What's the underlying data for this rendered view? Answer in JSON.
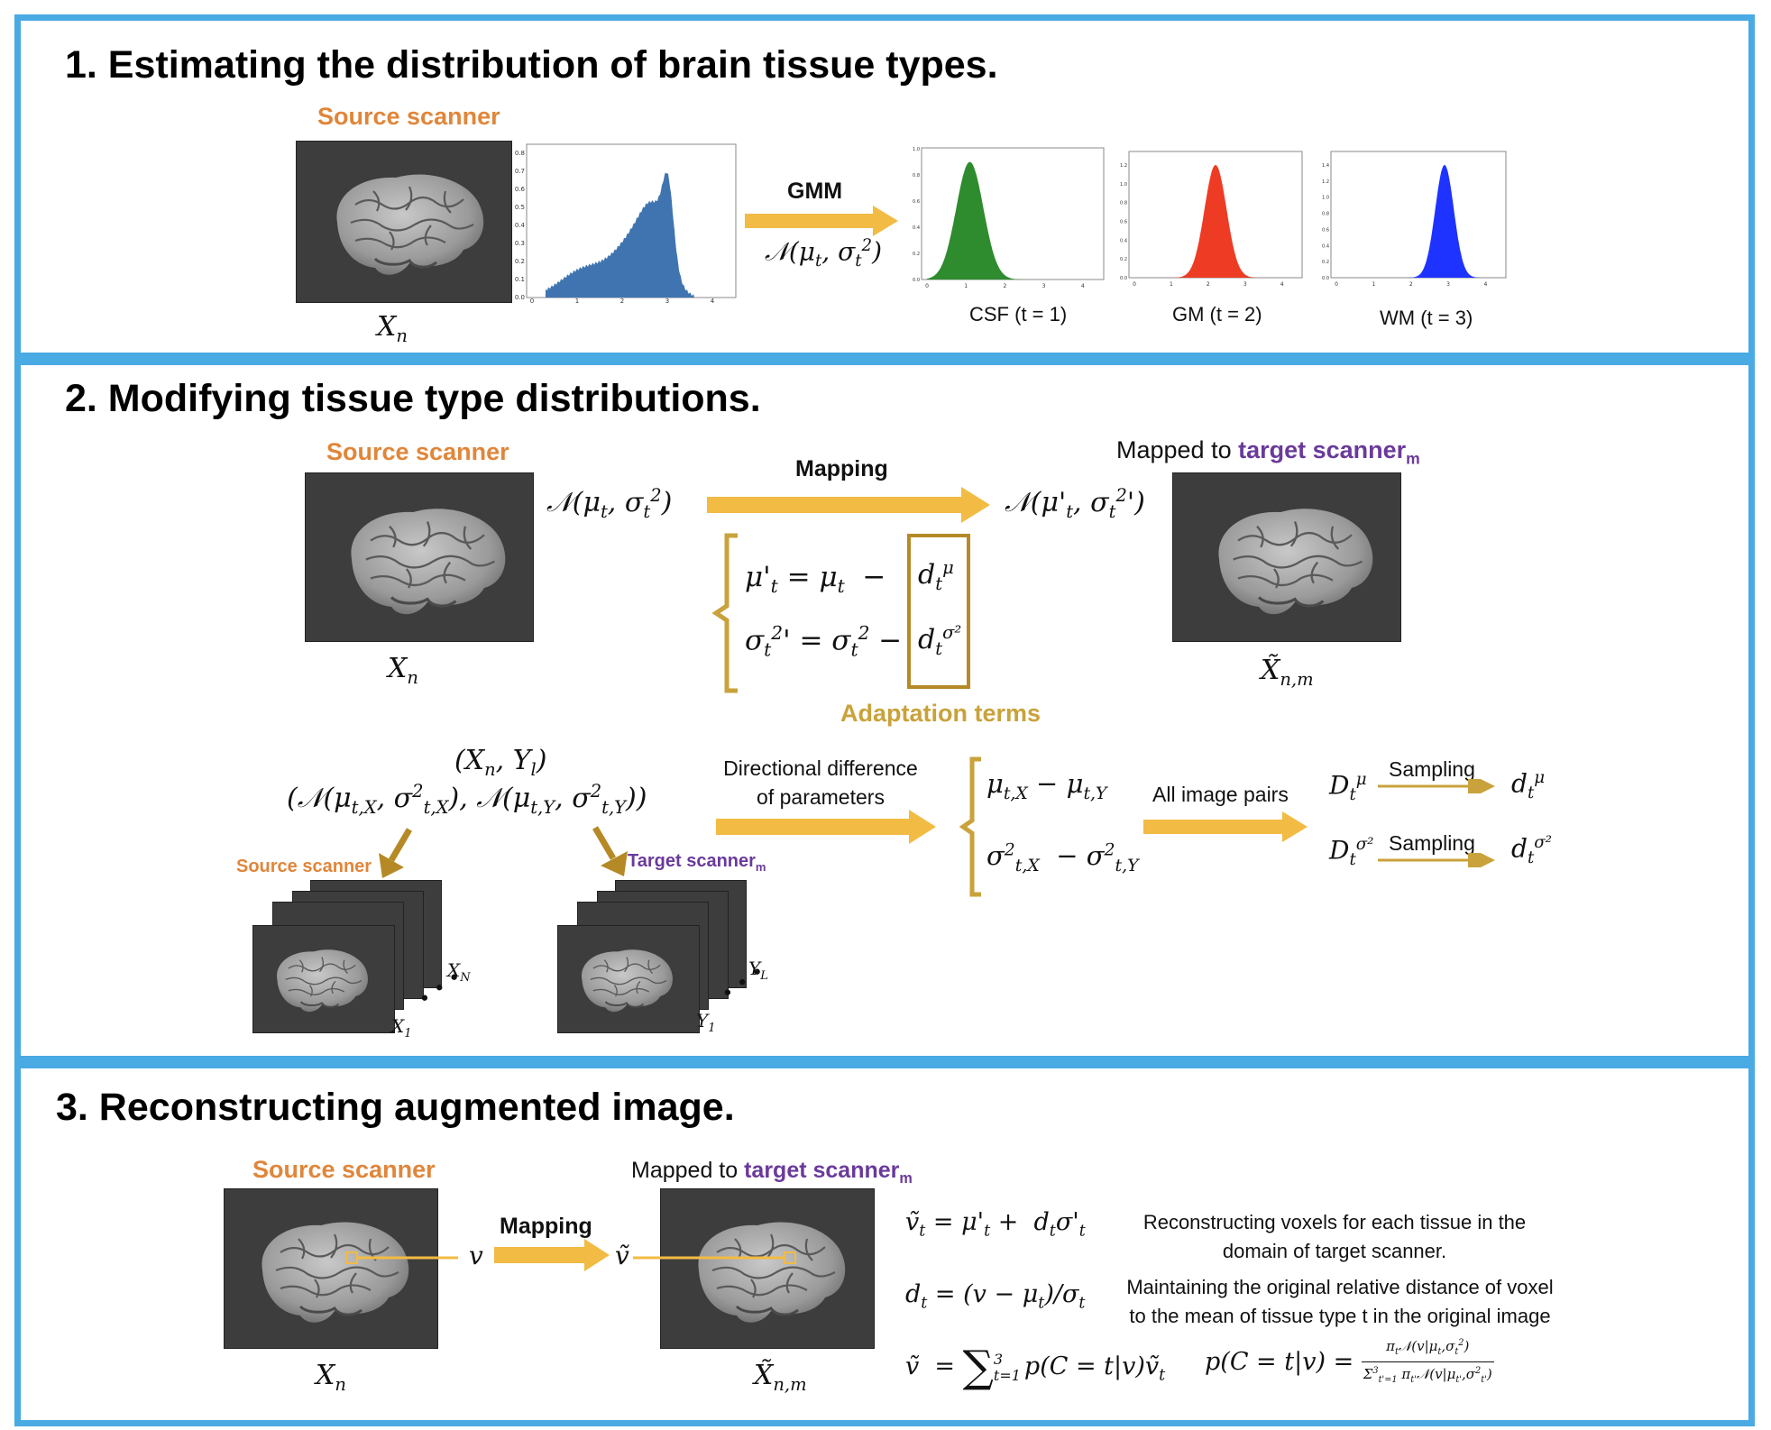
{
  "panel1": {
    "title": "1. Estimating the distribution of brain tissue types.",
    "source_label": "Source scanner",
    "image_label": "X_n",
    "gmm_label": "GMM",
    "gmm_formula": "𝒩(μ_t, σ_t²)",
    "histogram_yticks": [
      "0.0",
      "0.1",
      "0.2",
      "0.3",
      "0.4",
      "0.5",
      "0.6",
      "0.7",
      "0.8"
    ],
    "histogram_xticks": [
      "0",
      "1",
      "2",
      "3",
      "4"
    ],
    "gaussians": [
      {
        "label": "CSF (t = 1)",
        "color": "#2e8b2e",
        "mean": 1.1,
        "sd": 0.35,
        "peak": 0.9
      },
      {
        "label": "GM (t = 2)",
        "color": "#ee3b24",
        "mean": 2.2,
        "sd": 0.3,
        "peak": 1.2
      },
      {
        "label": "WM (t = 3)",
        "color": "#1e33ff",
        "mean": 2.9,
        "sd": 0.25,
        "peak": 1.4
      }
    ]
  },
  "panel2": {
    "title": "2. Modifying tissue type distributions.",
    "source_label": "Source scanner",
    "image_label": "X_n",
    "mapping_label": "Mapping",
    "formula_left": "𝒩(μ_t, σ_t²)",
    "formula_right": "𝒩(μ'_t, σ_t²')",
    "mapped_to_prefix": "Mapped to ",
    "mapped_to_target": "target scanner",
    "mapped_to_sub": "m",
    "mapped_image_label": "X̃_n,m",
    "eq1_left": "μ'_t = μ_t −",
    "eq1_term": "d_t^μ",
    "eq2_left": "σ_t²' = σ_t² −",
    "eq2_term": "d_t^σ²",
    "adaptation_label": "Adaptation terms",
    "pair_label": "(X_n, Y_l)",
    "pair_dist": "(𝒩(μ_t,X, σ²_t,X), 𝒩(μ_t,Y, σ²_t,Y))",
    "src_scanner_small": "Source scanner",
    "tgt_scanner_small": "Target scanner",
    "tgt_scanner_sub": "m",
    "dir_diff_line1": "Directional difference",
    "dir_diff_line2": "of parameters",
    "diff_mu": "μ_t,X − μ_t,Y",
    "diff_sigma": "σ²_t,X − σ²_t,Y",
    "all_pairs": "All image pairs",
    "D_mu": "D_t^μ",
    "D_sigma": "D_t^σ²",
    "sampling1": "Sampling",
    "sampling2": "Sampling",
    "d_mu": "d_t^μ",
    "d_sigma": "d_t^σ²",
    "stack_x_top": "X_N",
    "stack_x_bottom": "X_1",
    "stack_y_top": "Y_L",
    "stack_y_bottom": "Y_1"
  },
  "panel3": {
    "title": "3. Reconstructing augmented image.",
    "source_label": "Source scanner",
    "image_label": "X_n",
    "v_label": "v",
    "mapping_label": "Mapping",
    "vt_label": "ṽ",
    "mapped_to_prefix": "Mapped to ",
    "mapped_to_target": "target scanner",
    "mapped_to_sub": "m",
    "mapped_image_label": "X̃_n,m",
    "eq_vt": "ṽ_t = μ'_t + d_t σ'_t",
    "eq_dt": "d_t = (v − μ_t)/σ_t",
    "eq_sum": "ṽ = Σ_{t=1}^{3} p(C = t|v) ṽ_t",
    "eq_post": "p(C = t|v) = π_t 𝒩(v|μ_t,σ_t²) / Σ_{t'=1}^{3} π_t' 𝒩(v|μ_t',σ_t'²)",
    "desc1_line1": "Reconstructing voxels for each tissue in the",
    "desc1_line2": "domain of target scanner.",
    "desc2_line1": "Maintaining the original relative distance of voxel",
    "desc2_line2": "to the mean of tissue type t in the original image"
  },
  "colors": {
    "frame": "#4aaae4",
    "arrow": "#f2bb44",
    "gold": "#c9a23b",
    "orange": "#e0863a",
    "purple": "#6a3a9b",
    "histogram": "#3f74b0"
  }
}
